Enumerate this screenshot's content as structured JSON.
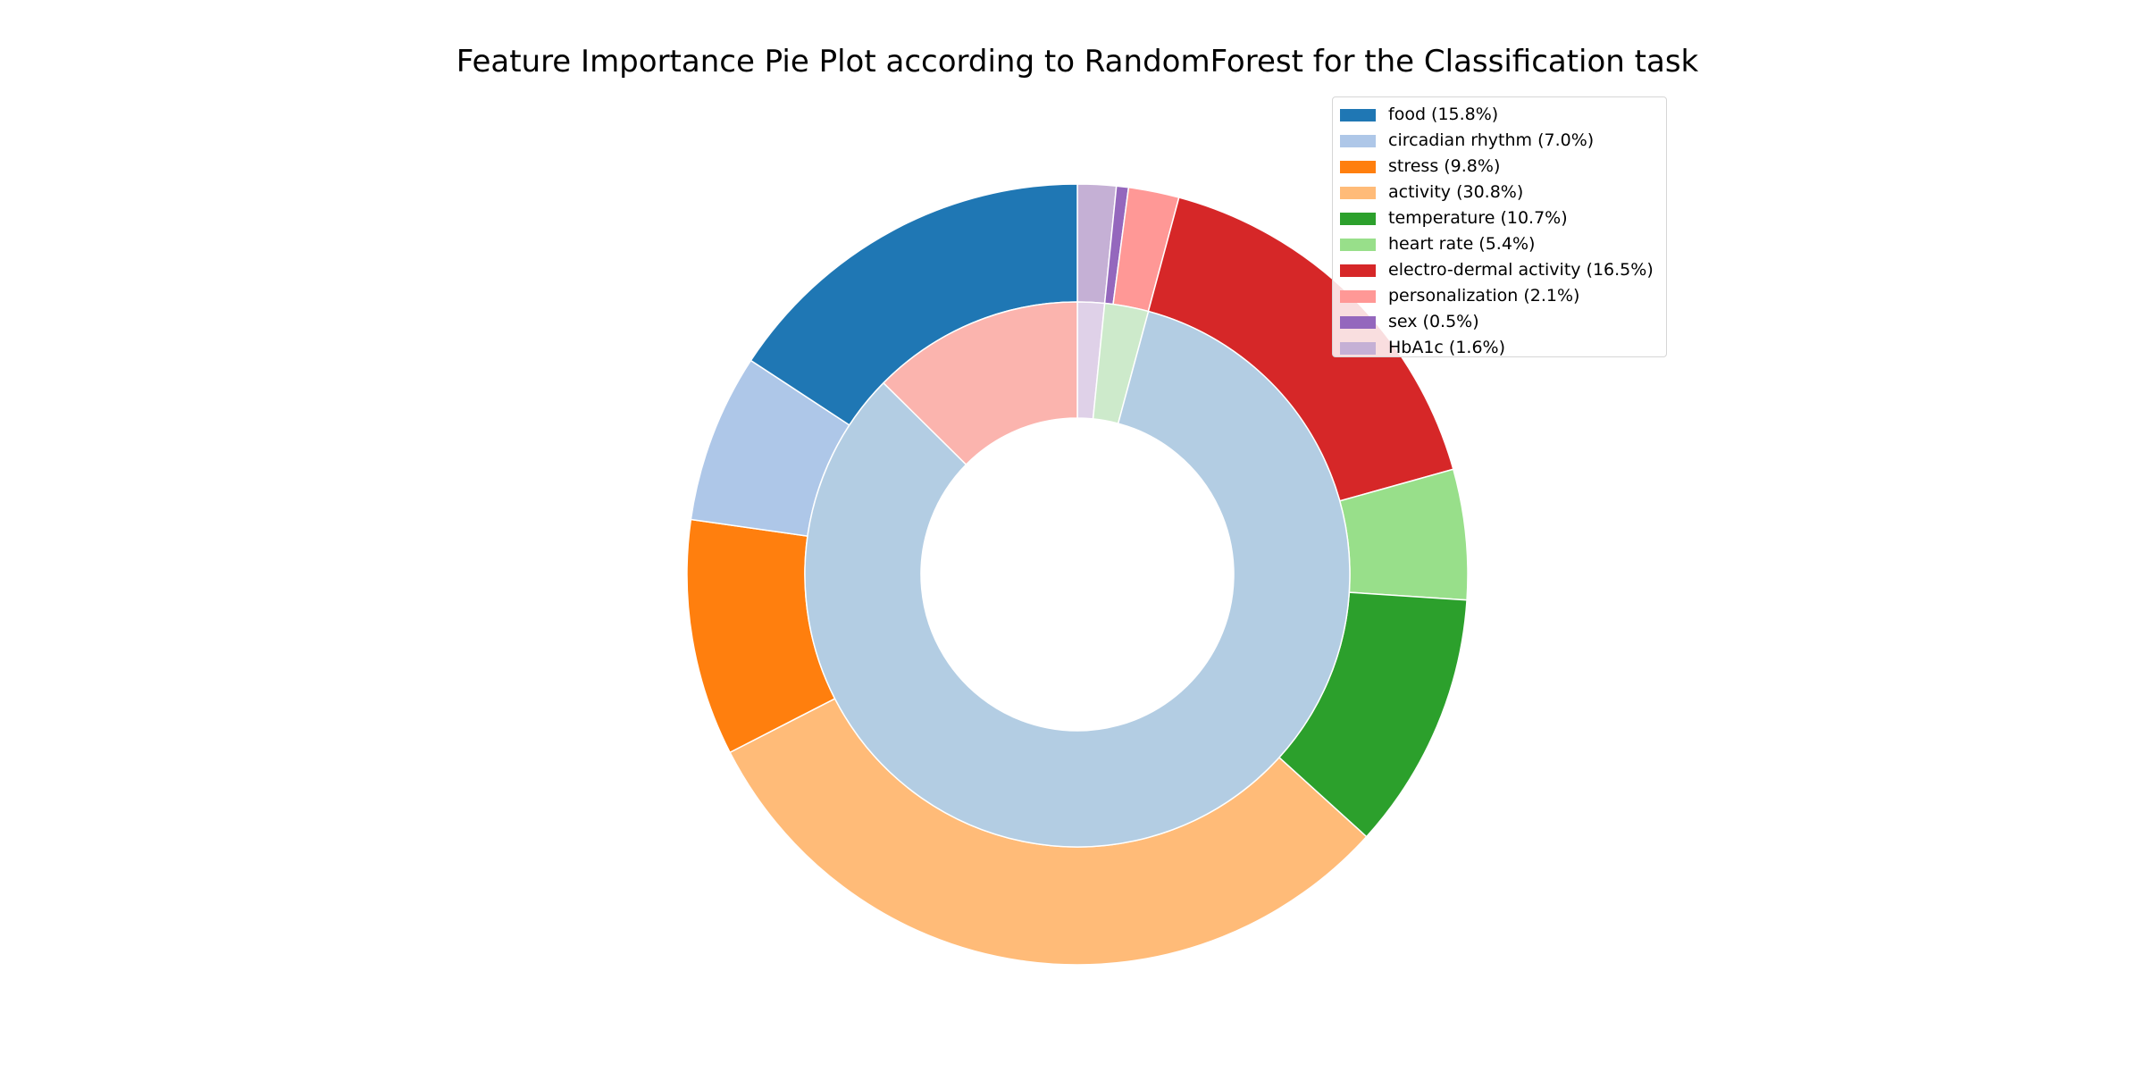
{
  "chart_data": {
    "type": "pie",
    "style": "nested donut",
    "title": "Feature Importance Pie Plot according to RandomForest for the Classification task",
    "legend_position": "top-right",
    "outer_ring": {
      "slices": [
        {
          "label": "HbA1c",
          "value": 1.6,
          "legend": "HbA1c (1.6%)",
          "color": "#c5b0d5"
        },
        {
          "label": "sex",
          "value": 0.5,
          "legend": "sex (0.5%)",
          "color": "#9467bd"
        },
        {
          "label": "personalization",
          "value": 2.1,
          "legend": "personalization (2.1%)",
          "color": "#ff9896"
        },
        {
          "label": "electro-dermal activity",
          "value": 16.5,
          "legend": "electro-dermal activity (16.5%)",
          "color": "#d62728"
        },
        {
          "label": "heart rate",
          "value": 5.4,
          "legend": "heart rate (5.4%)",
          "color": "#98df8a"
        },
        {
          "label": "temperature",
          "value": 10.7,
          "legend": "temperature (10.7%)",
          "color": "#2ca02c"
        },
        {
          "label": "activity",
          "value": 30.8,
          "legend": "activity (30.8%)",
          "color": "#ffbb78"
        },
        {
          "label": "stress",
          "value": 9.8,
          "legend": "stress (9.8%)",
          "color": "#ff7f0e"
        },
        {
          "label": "circadian rhythm",
          "value": 7.0,
          "legend": "circadian rhythm (7.0%)",
          "color": "#aec7e8"
        },
        {
          "label": "food",
          "value": 15.8,
          "legend": "food (15.8%)",
          "color": "#1f77b4"
        }
      ]
    },
    "inner_ring": {
      "slices": [
        {
          "value": 1.6,
          "color": "#dfd1e8"
        },
        {
          "value": 2.6,
          "color": "#cdeacb"
        },
        {
          "value": 83.2,
          "color": "#b3cde3"
        },
        {
          "value": 12.6,
          "color": "#fbb4ae"
        }
      ]
    },
    "legend_order": [
      "food (15.8%)",
      "circadian rhythm (7.0%)",
      "stress (9.8%)",
      "activity (30.8%)",
      "temperature (10.7%)",
      "heart rate (5.4%)",
      "electro-dermal activity (16.5%)",
      "personalization (2.1%)",
      "sex (0.5%)",
      "HbA1c (1.6%)"
    ],
    "legend_colors": [
      "#1f77b4",
      "#aec7e8",
      "#ff7f0e",
      "#ffbb78",
      "#2ca02c",
      "#98df8a",
      "#d62728",
      "#ff9896",
      "#9467bd",
      "#c5b0d5"
    ]
  }
}
